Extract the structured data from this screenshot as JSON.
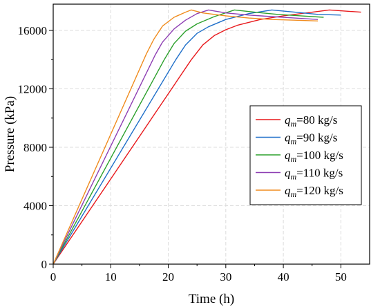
{
  "chart_data": {
    "type": "line",
    "xlabel": "Time (h)",
    "ylabel": "Pressure (kPa)",
    "xlim": [
      0,
      55
    ],
    "ylim": [
      0,
      17800
    ],
    "x_ticks": [
      0,
      10,
      20,
      30,
      40,
      50
    ],
    "y_ticks": [
      0,
      4000,
      8000,
      12000,
      16000
    ],
    "grid": true,
    "legend_position": "center-right",
    "series": [
      {
        "name": "qm=80 kg/s",
        "label_var": "q",
        "label_sub": "m",
        "label_rest": "=80 kg/s",
        "color": "#e8191c",
        "x": [
          0,
          24,
          26,
          28,
          30,
          32,
          36,
          40,
          44,
          48,
          53.5
        ],
        "y": [
          0,
          14000,
          15000,
          15650,
          16050,
          16350,
          16750,
          17000,
          17200,
          17400,
          17250
        ]
      },
      {
        "name": "qm=90 kg/s",
        "label_var": "q",
        "label_sub": "m",
        "label_rest": "=90 kg/s",
        "color": "#1f6fc9",
        "x": [
          0,
          21.3,
          23,
          25,
          27,
          30,
          34,
          38,
          42,
          46,
          50
        ],
        "y": [
          0,
          14000,
          15000,
          15800,
          16250,
          16750,
          17150,
          17400,
          17250,
          17100,
          17050
        ]
      },
      {
        "name": "qm=100 kg/s",
        "label_var": "q",
        "label_sub": "m",
        "label_rest": "=100 kg/s",
        "color": "#2ca02c",
        "x": [
          0,
          19.3,
          21,
          23,
          25,
          28,
          31.5,
          35,
          39,
          43,
          47
        ],
        "y": [
          0,
          14000,
          15100,
          15950,
          16450,
          16950,
          17400,
          17250,
          17100,
          17000,
          16900
        ]
      },
      {
        "name": "qm=110 kg/s",
        "label_var": "q",
        "label_sub": "m",
        "label_rest": "=110 kg/s",
        "color": "#8e3fb3",
        "x": [
          0,
          17.7,
          19,
          21,
          23,
          25,
          27,
          30,
          34,
          38,
          42,
          46
        ],
        "y": [
          0,
          14300,
          15200,
          16100,
          16700,
          17150,
          17400,
          17200,
          17050,
          16950,
          16850,
          16750
        ]
      },
      {
        "name": "qm=120 kg/s",
        "label_var": "q",
        "label_sub": "m",
        "label_rest": "=120 kg/s",
        "color": "#f08c1e",
        "x": [
          0,
          16.2,
          17.5,
          19,
          21,
          23,
          24,
          26,
          30,
          34,
          38,
          42,
          46
        ],
        "y": [
          0,
          14400,
          15400,
          16300,
          16900,
          17250,
          17400,
          17200,
          17000,
          16850,
          16750,
          16700,
          16650
        ]
      }
    ]
  }
}
